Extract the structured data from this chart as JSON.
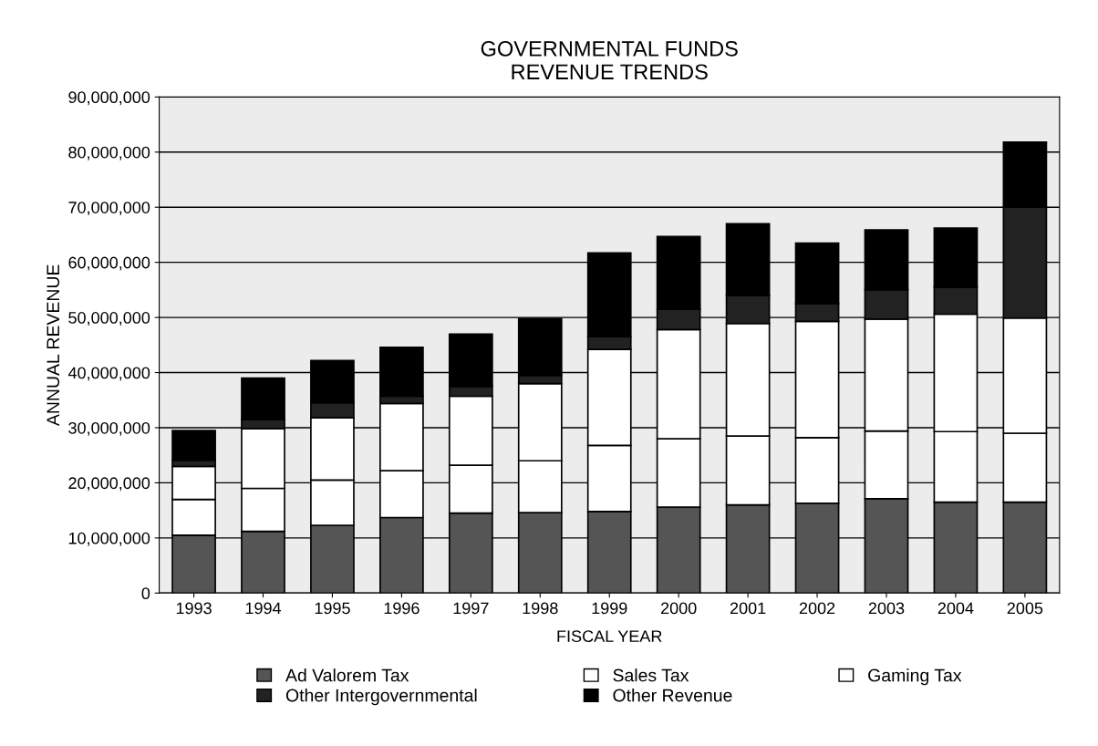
{
  "chart_data": {
    "type": "bar",
    "title": "GOVERNMENTAL FUNDS\nREVENUE TRENDS",
    "xlabel": "FISCAL YEAR",
    "ylabel": "ANNUAL REVENUE",
    "categories": [
      "1993",
      "1994",
      "1995",
      "1996",
      "1997",
      "1998",
      "1999",
      "2000",
      "2001",
      "2002",
      "2003",
      "2004",
      "2005"
    ],
    "stacked": true,
    "series": [
      {
        "name": "Ad Valorem Tax",
        "color": "#555555",
        "values": [
          10500000,
          11200000,
          12300000,
          13700000,
          14500000,
          14600000,
          14800000,
          15600000,
          16000000,
          16300000,
          17100000,
          16500000,
          16500000
        ]
      },
      {
        "name": "Sales Tax",
        "color": "#ffffff",
        "values": [
          6500000,
          7800000,
          8200000,
          8500000,
          8700000,
          9400000,
          12000000,
          12400000,
          12500000,
          11900000,
          12300000,
          12800000,
          12500000
        ]
      },
      {
        "name": "Gaming Tax",
        "color": "#ffffff",
        "values": [
          6000000,
          10800000,
          11300000,
          12200000,
          12500000,
          14000000,
          17400000,
          19800000,
          20400000,
          21100000,
          20300000,
          21300000,
          20900000
        ]
      },
      {
        "name": "Other Intergovernmental",
        "color": "#222222",
        "values": [
          1100000,
          1700000,
          2700000,
          1300000,
          1800000,
          1500000,
          2300000,
          3700000,
          5100000,
          3200000,
          5300000,
          4900000,
          20100000
        ]
      },
      {
        "name": "Other Revenue",
        "color": "#000000",
        "values": [
          5400000,
          7500000,
          7700000,
          8900000,
          9500000,
          10300000,
          15200000,
          13200000,
          13000000,
          11000000,
          10900000,
          10700000,
          11800000
        ]
      }
    ],
    "ylim": [
      0,
      90000000
    ],
    "yticks": [
      0,
      {
        "value": 10000000,
        "label": "10,000,000"
      },
      {
        "value": 20000000,
        "label": "20,000,000"
      },
      {
        "value": 30000000,
        "label": "30,000,000"
      },
      {
        "value": 40000000,
        "label": "40,000,000"
      },
      {
        "value": 50000000,
        "label": "50,000,000"
      },
      {
        "value": 60000000,
        "label": "60,000,000"
      },
      {
        "value": 70000000,
        "label": "70,000,000"
      },
      {
        "value": 80000000,
        "label": "80,000,000"
      },
      {
        "value": 90000000,
        "label": "90,000,000"
      }
    ],
    "grid": "y",
    "legend": "bottom"
  }
}
